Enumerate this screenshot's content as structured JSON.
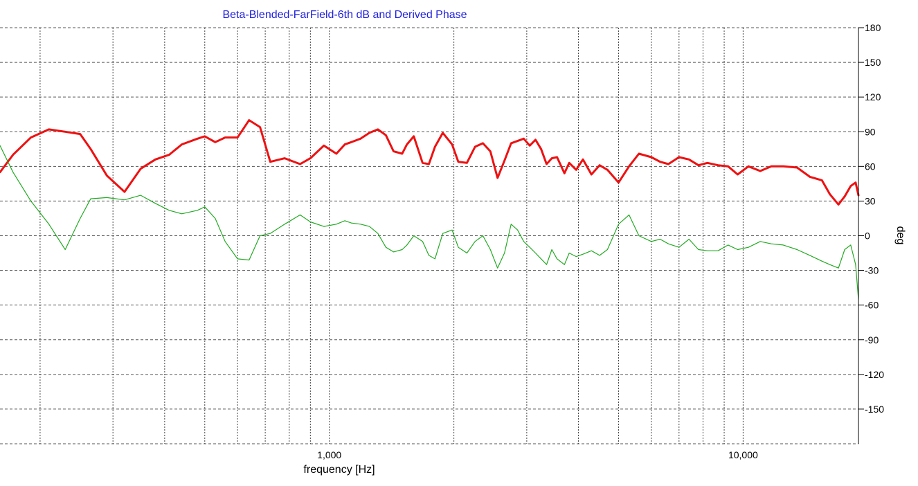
{
  "chart_data": {
    "type": "line",
    "title": "Beta-Blended-FarField-6th dB and Derived Phase",
    "xlabel": "frequency [Hz]",
    "ylabel": "deg",
    "x_scale": "log",
    "xlim": [
      160,
      19000
    ],
    "ylim": [
      -180,
      180
    ],
    "x_tick_labels": [
      {
        "value": 1000,
        "label": "1,000"
      },
      {
        "value": 10000,
        "label": "10,000"
      }
    ],
    "y_ticks": [
      180,
      150,
      120,
      90,
      60,
      30,
      0,
      -30,
      -60,
      -90,
      -120,
      -150
    ],
    "grid": true,
    "series": [
      {
        "color": "#ee1111",
        "line_width": 3,
        "x": [
          160,
          172,
          190,
          210,
          230,
          250,
          265,
          290,
          320,
          350,
          380,
          410,
          440,
          480,
          500,
          530,
          560,
          600,
          640,
          680,
          720,
          780,
          850,
          900,
          970,
          1040,
          1090,
          1130,
          1190,
          1250,
          1310,
          1370,
          1430,
          1500,
          1540,
          1600,
          1680,
          1740,
          1800,
          1880,
          1980,
          2050,
          2150,
          2250,
          2350,
          2450,
          2550,
          2650,
          2750,
          2850,
          2950,
          3050,
          3150,
          3250,
          3350,
          3450,
          3550,
          3700,
          3800,
          3950,
          4100,
          4300,
          4500,
          4700,
          5000,
          5300,
          5600,
          6000,
          6300,
          6600,
          7000,
          7400,
          7800,
          8200,
          8700,
          9200,
          9700,
          10300,
          11000,
          11700,
          12500,
          13500,
          14500,
          15500,
          16200,
          17000,
          17600,
          18200,
          18700,
          19000
        ],
        "y": [
          55,
          70,
          85,
          92,
          90,
          88,
          75,
          52,
          38,
          58,
          66,
          70,
          79,
          84,
          86,
          81,
          85,
          85,
          100,
          94,
          64,
          67,
          62,
          67,
          78,
          71,
          79,
          81,
          84,
          89,
          92,
          87,
          73,
          71,
          79,
          86,
          63,
          62,
          77,
          89,
          79,
          64,
          63,
          77,
          80,
          73,
          50,
          65,
          80,
          82,
          84,
          78,
          83,
          75,
          62,
          67,
          68,
          54,
          63,
          57,
          66,
          53,
          61,
          57,
          46,
          60,
          71,
          68,
          64,
          62,
          68,
          66,
          61,
          63,
          61,
          60,
          53,
          60,
          56,
          60,
          60,
          59,
          51,
          48,
          36,
          27,
          34,
          43,
          46,
          35
        ]
      },
      {
        "color": "#22aa22",
        "line_width": 1.2,
        "x": [
          160,
          172,
          190,
          210,
          230,
          250,
          265,
          290,
          320,
          350,
          380,
          410,
          440,
          480,
          500,
          530,
          560,
          600,
          640,
          680,
          720,
          780,
          850,
          900,
          970,
          1040,
          1090,
          1130,
          1190,
          1250,
          1310,
          1370,
          1430,
          1500,
          1540,
          1600,
          1680,
          1740,
          1800,
          1880,
          1980,
          2050,
          2150,
          2250,
          2350,
          2450,
          2550,
          2650,
          2750,
          2850,
          2950,
          3050,
          3150,
          3250,
          3350,
          3450,
          3550,
          3700,
          3800,
          3950,
          4100,
          4300,
          4500,
          4700,
          5000,
          5300,
          5600,
          6000,
          6300,
          6600,
          7000,
          7400,
          7800,
          8200,
          8700,
          9200,
          9700,
          10300,
          11000,
          11700,
          12500,
          13500,
          14500,
          15500,
          16200,
          17000,
          17600,
          18200,
          18700,
          19000
        ],
        "y": [
          78,
          55,
          30,
          10,
          -12,
          15,
          32,
          33,
          31,
          35,
          28,
          22,
          19,
          22,
          25,
          15,
          -5,
          -20,
          -21,
          0,
          2,
          10,
          18,
          12,
          8,
          10,
          13,
          11,
          10,
          8,
          2,
          -10,
          -14,
          -12,
          -8,
          0,
          -5,
          -17,
          -20,
          2,
          5,
          -10,
          -15,
          -5,
          0,
          -12,
          -28,
          -15,
          10,
          5,
          -5,
          -10,
          -15,
          -20,
          -25,
          -12,
          -20,
          -25,
          -15,
          -18,
          -16,
          -13,
          -17,
          -12,
          10,
          18,
          0,
          -5,
          -3,
          -7,
          -10,
          -3,
          -12,
          -13,
          -13,
          -8,
          -12,
          -10,
          -5,
          -7,
          -8,
          -12,
          -17,
          -22,
          -25,
          -28,
          -12,
          -8,
          -25,
          -55
        ]
      }
    ]
  }
}
